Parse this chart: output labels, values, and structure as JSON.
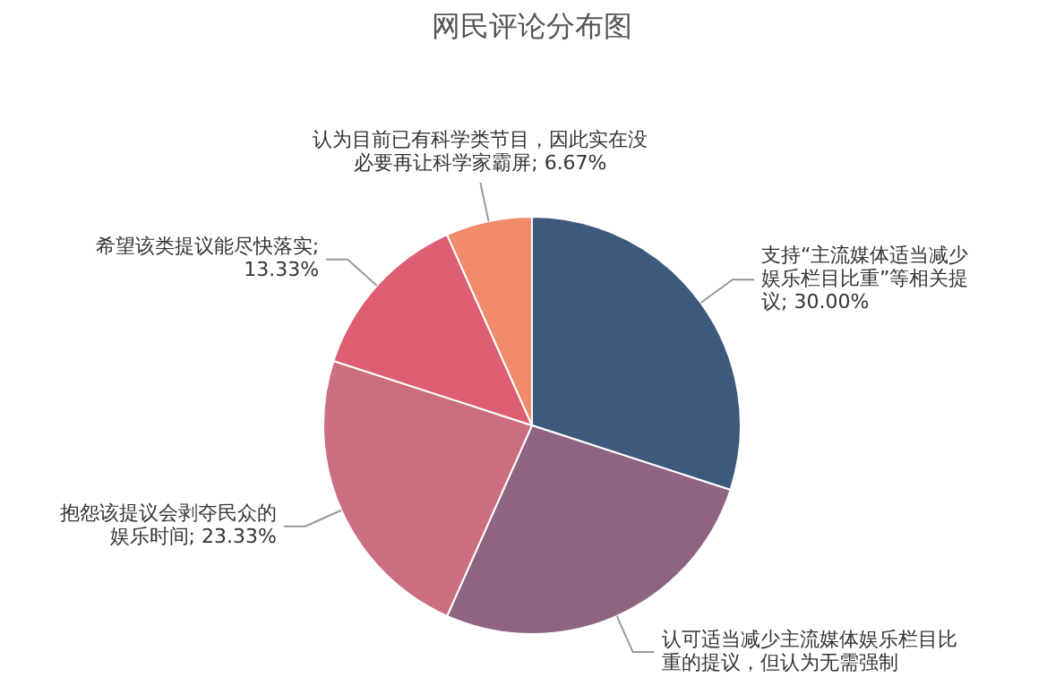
{
  "chart_data": {
    "type": "pie",
    "title": "网民评论分布图",
    "categories": [
      "支持“主流媒体适当减少娱乐栏目比重”等相关提议; 30.00%",
      "认可适当减少主流媒体娱乐栏目比重的提议，但认为无需强制",
      "抱怨该提议会剥夺民众的娱乐时间; 23.33%",
      "希望该类提议能尽快落实; 13.33%",
      "认为目前已有科学类节目，因此实在没必要再让科学家霸屏; 6.67%"
    ],
    "values": [
      30.0,
      26.67,
      23.33,
      13.33,
      6.67
    ],
    "colors": [
      "#3d5a7c",
      "#8f6482",
      "#cb6f80",
      "#dd5e72",
      "#f28b6c"
    ],
    "legend": false
  }
}
